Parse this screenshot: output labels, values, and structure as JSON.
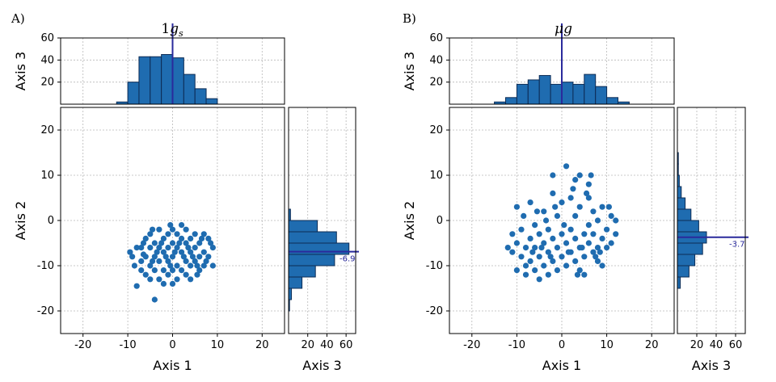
{
  "chart_data": [
    {
      "panel_label": "A)",
      "title": "1g_s",
      "type": "scatter",
      "x_label": "Axis 1",
      "y_label": "Axis 2",
      "xlim": [
        -25,
        25
      ],
      "ylim": [
        -25,
        25
      ],
      "x_ticks": [
        -20,
        -10,
        0,
        10,
        20
      ],
      "y_ticks": [
        -20,
        -10,
        0,
        10,
        20
      ],
      "grid": true,
      "points": [
        [
          -9,
          -8
        ],
        [
          -8,
          -6
        ],
        [
          -8,
          -14.5
        ],
        [
          -7,
          -11
        ],
        [
          -7,
          -6
        ],
        [
          -7,
          -9
        ],
        [
          -6,
          -4
        ],
        [
          -6,
          -8
        ],
        [
          -6,
          -12
        ],
        [
          -5,
          -3
        ],
        [
          -5,
          -6
        ],
        [
          -5,
          -10
        ],
        [
          -5,
          -13
        ],
        [
          -4,
          -5
        ],
        [
          -4,
          -8
        ],
        [
          -4,
          -17.5
        ],
        [
          -4,
          -11
        ],
        [
          -3,
          -2
        ],
        [
          -3,
          -6
        ],
        [
          -3,
          -9
        ],
        [
          -3,
          -13
        ],
        [
          -2,
          -4
        ],
        [
          -2,
          -7
        ],
        [
          -2,
          -11
        ],
        [
          -2,
          -14
        ],
        [
          -1,
          -3
        ],
        [
          -1,
          -6
        ],
        [
          -1,
          -9
        ],
        [
          -1,
          -12
        ],
        [
          0,
          -2
        ],
        [
          0,
          -5
        ],
        [
          0,
          -8
        ],
        [
          0,
          -11
        ],
        [
          0,
          -14
        ],
        [
          1,
          -3
        ],
        [
          1,
          -6
        ],
        [
          1,
          -10
        ],
        [
          1,
          -13
        ],
        [
          2,
          -4
        ],
        [
          2,
          -7
        ],
        [
          2,
          -11
        ],
        [
          3,
          -2
        ],
        [
          3,
          -5
        ],
        [
          3,
          -9
        ],
        [
          3,
          -12
        ],
        [
          4,
          -4
        ],
        [
          4,
          -7
        ],
        [
          4,
          -10
        ],
        [
          4,
          -13
        ],
        [
          5,
          -3
        ],
        [
          5,
          -6
        ],
        [
          5,
          -9
        ],
        [
          6,
          -5
        ],
        [
          6,
          -8
        ],
        [
          6,
          -11
        ],
        [
          7,
          -3
        ],
        [
          7,
          -7
        ],
        [
          7,
          -10
        ],
        [
          8,
          -4
        ],
        [
          8,
          -8
        ],
        [
          9,
          -6
        ],
        [
          9,
          -10
        ],
        [
          -9.5,
          -7
        ],
        [
          -8.5,
          -10
        ],
        [
          -6.5,
          -5
        ],
        [
          -4.5,
          -9
        ],
        [
          -3.5,
          -7
        ],
        [
          -2.5,
          -5
        ],
        [
          -1.5,
          -8
        ],
        [
          -0.5,
          -10
        ],
        [
          0.5,
          -7
        ],
        [
          1.5,
          -5
        ],
        [
          2.5,
          -8
        ],
        [
          3.5,
          -6
        ],
        [
          4.5,
          -8
        ],
        [
          5.5,
          -10
        ],
        [
          6.5,
          -4
        ],
        [
          7.5,
          -9
        ],
        [
          8.5,
          -5
        ],
        [
          -0.5,
          -1
        ],
        [
          -4.5,
          -2
        ],
        [
          2,
          -1
        ],
        [
          -6.5,
          -7.5
        ],
        [
          5.5,
          -12
        ]
      ],
      "top_hist": {
        "y_label": "Axis 3",
        "y_ticks": [
          20,
          40,
          60
        ],
        "ylim": [
          0,
          60
        ],
        "bin_edges": [
          -12.5,
          -10,
          -7.5,
          -5,
          -2.5,
          0,
          2.5,
          5,
          7.5,
          10,
          12.5
        ],
        "counts": [
          2,
          20,
          43,
          43,
          45,
          42,
          27,
          14,
          5,
          0
        ],
        "mean": 0
      },
      "right_hist": {
        "x_label": "Axis 3",
        "x_ticks": [
          20,
          40,
          60
        ],
        "xlim": [
          0,
          70
        ],
        "bin_edges": [
          -20,
          -17.5,
          -15,
          -12.5,
          -10,
          -7.5,
          -5,
          -2.5,
          0,
          2.5
        ],
        "counts": [
          1,
          3,
          14,
          28,
          48,
          63,
          50,
          30,
          2
        ],
        "mean": -6.9,
        "mean_label": "-6.9"
      }
    },
    {
      "panel_label": "B)",
      "title": "μg",
      "type": "scatter",
      "x_label": "Axis 1",
      "y_label": "Axis 2",
      "xlim": [
        -25,
        25
      ],
      "ylim": [
        -25,
        25
      ],
      "x_ticks": [
        -20,
        -10,
        0,
        10,
        20
      ],
      "y_ticks": [
        -20,
        -10,
        0,
        10,
        20
      ],
      "grid": true,
      "points": [
        [
          -12,
          -6
        ],
        [
          -11,
          -7
        ],
        [
          -11,
          -3
        ],
        [
          -10,
          -5
        ],
        [
          -10,
          -11
        ],
        [
          -10,
          3
        ],
        [
          -9,
          -8
        ],
        [
          -9,
          -2
        ],
        [
          -8,
          -6
        ],
        [
          -8,
          -10
        ],
        [
          -8,
          -12
        ],
        [
          -7,
          -4
        ],
        [
          -7,
          -9
        ],
        [
          -7,
          4
        ],
        [
          -6,
          -6
        ],
        [
          -6,
          -1
        ],
        [
          -6,
          -11
        ],
        [
          -5,
          -3
        ],
        [
          -5,
          -8
        ],
        [
          -5,
          -13
        ],
        [
          -4,
          -5
        ],
        [
          -4,
          -10
        ],
        [
          -4,
          2
        ],
        [
          -3,
          -7
        ],
        [
          -3,
          -2
        ],
        [
          -3,
          -12
        ],
        [
          -2,
          -4
        ],
        [
          -2,
          -9
        ],
        [
          -2,
          10
        ],
        [
          -2,
          6
        ],
        [
          -1,
          -6
        ],
        [
          -1,
          -11
        ],
        [
          -1,
          1
        ],
        [
          0,
          -3
        ],
        [
          0,
          -8
        ],
        [
          0,
          4
        ],
        [
          1,
          -5
        ],
        [
          1,
          -10
        ],
        [
          1,
          12
        ],
        [
          2,
          -7
        ],
        [
          2,
          -2
        ],
        [
          2,
          5
        ],
        [
          3,
          -4
        ],
        [
          3,
          -9
        ],
        [
          3,
          9
        ],
        [
          3,
          1
        ],
        [
          4,
          -6
        ],
        [
          4,
          -11
        ],
        [
          4,
          3
        ],
        [
          4,
          10
        ],
        [
          5,
          -3
        ],
        [
          5,
          -8
        ],
        [
          5,
          -12
        ],
        [
          6,
          -5
        ],
        [
          6,
          -1
        ],
        [
          6,
          8
        ],
        [
          6,
          5
        ],
        [
          7,
          -7
        ],
        [
          7,
          -3
        ],
        [
          7,
          2
        ],
        [
          8,
          -6
        ],
        [
          8,
          -9
        ],
        [
          8,
          0
        ],
        [
          9,
          -4
        ],
        [
          9,
          -10
        ],
        [
          9,
          3
        ],
        [
          10,
          -6
        ],
        [
          10,
          -2
        ],
        [
          11,
          -5
        ],
        [
          11,
          1
        ],
        [
          12,
          -3
        ],
        [
          12,
          0
        ],
        [
          -8.5,
          1
        ],
        [
          -5.5,
          2
        ],
        [
          -3.5,
          0
        ],
        [
          -1.5,
          3
        ],
        [
          0.5,
          -1
        ],
        [
          2.5,
          7
        ],
        [
          3.5,
          -12
        ],
        [
          5.5,
          6
        ],
        [
          6.5,
          10
        ],
        [
          7.5,
          -8
        ],
        [
          10.5,
          3
        ],
        [
          -6.5,
          -7
        ],
        [
          -4.5,
          -6
        ],
        [
          -2.5,
          -8
        ],
        [
          1.5,
          -7
        ],
        [
          4.5,
          -6
        ],
        [
          8.5,
          -7
        ]
      ],
      "top_hist": {
        "y_label": "Axis 3",
        "y_ticks": [
          20,
          40,
          60
        ],
        "ylim": [
          0,
          60
        ],
        "bin_edges": [
          -17.5,
          -15,
          -12.5,
          -10,
          -7.5,
          -5,
          -2.5,
          0,
          2.5,
          5,
          7.5,
          10,
          12.5,
          15,
          17.5
        ],
        "counts": [
          0,
          2,
          6,
          18,
          22,
          26,
          18,
          20,
          18,
          27,
          16,
          6,
          2,
          0
        ],
        "mean": 0
      },
      "right_hist": {
        "x_label": "Axis 3",
        "x_ticks": [
          20,
          40,
          60
        ],
        "xlim": [
          0,
          70
        ],
        "bin_edges": [
          -15,
          -12.5,
          -10,
          -7.5,
          -5,
          -2.5,
          0,
          2.5,
          5,
          7.5,
          10,
          12.5,
          15
        ],
        "counts": [
          3,
          12,
          18,
          26,
          30,
          22,
          14,
          8,
          4,
          2,
          1,
          1
        ],
        "mean": -3.7,
        "mean_label": "-3.7"
      }
    }
  ]
}
